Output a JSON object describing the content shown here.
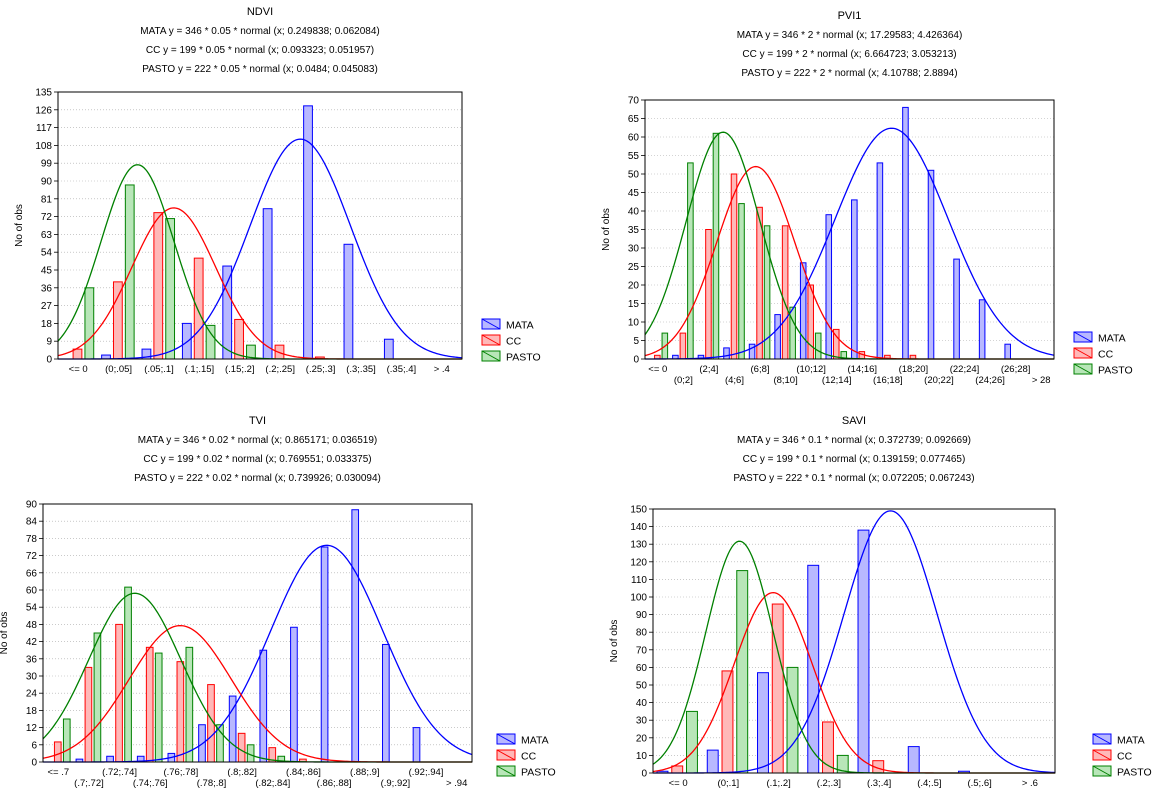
{
  "colors": {
    "MATA": "#0000ff",
    "CC": "#ff0000",
    "PASTO": "#008000"
  },
  "chart_data": [
    {
      "type": "bar",
      "title": "NDVI",
      "subtitle": [
        "MATA y = 346 * 0.05 * normal (x; 0.249838; 0.062084)",
        "CC y = 199 * 0.05 * normal (x; 0.093323; 0.051957)",
        "PASTO y = 222 * 0.05 * normal (x; 0.0484; 0.045083)"
      ],
      "ylabel": "No of obs",
      "ylim": [
        0,
        135
      ],
      "yticks": [
        0,
        9,
        18,
        27,
        36,
        45,
        54,
        63,
        72,
        81,
        90,
        99,
        108,
        117,
        126,
        135
      ],
      "categories": [
        "<= 0",
        "(0;.05]",
        "(.05;.1]",
        "(.1;.15]",
        "(.15;.2]",
        "(.2;.25]",
        "(.25;.3]",
        "(.3;.35]",
        "(.35;.4]",
        "> .4"
      ],
      "label_rows": 1,
      "legend_position": "right",
      "grid": true,
      "series": [
        {
          "name": "MATA",
          "values": [
            0,
            2,
            5,
            18,
            47,
            76,
            128,
            58,
            10,
            0
          ],
          "fit": {
            "n": 346,
            "w": 0.05,
            "mean": 0.249838,
            "sd": 0.062084
          }
        },
        {
          "name": "CC",
          "values": [
            5,
            39,
            74,
            51,
            20,
            7,
            1,
            0,
            0,
            0
          ],
          "fit": {
            "n": 199,
            "w": 0.05,
            "mean": 0.093323,
            "sd": 0.051957
          }
        },
        {
          "name": "PASTO",
          "values": [
            36,
            88,
            71,
            17,
            7,
            0,
            0,
            0,
            0,
            0
          ],
          "fit": {
            "n": 222,
            "w": 0.05,
            "mean": 0.0484,
            "sd": 0.045083
          }
        }
      ],
      "bins": {
        "first_lower": 0,
        "width": 0.05
      }
    },
    {
      "type": "bar",
      "title": "PVI1",
      "subtitle": [
        "MATA y = 346 * 2 * normal (x; 17.29583; 4.426364)",
        "CC y = 199 * 2 * normal (x; 6.664723; 3.053213)",
        "PASTO y = 222 * 2 * normal (x; 4.10788; 2.8894)"
      ],
      "ylabel": "No of obs",
      "ylim": [
        0,
        70
      ],
      "yticks": [
        0,
        5,
        10,
        15,
        20,
        25,
        30,
        35,
        40,
        45,
        50,
        55,
        60,
        65,
        70
      ],
      "categories": [
        "<= 0",
        "(0;2]",
        "(2;4]",
        "(4;6]",
        "(6;8]",
        "(8;10]",
        "(10;12]",
        "(12;14]",
        "(14;16]",
        "(16;18]",
        "(18;20]",
        "(20;22]",
        "(22;24]",
        "(24;26]",
        "(26;28]",
        "> 28"
      ],
      "label_rows": 2,
      "legend_position": "right",
      "grid": true,
      "series": [
        {
          "name": "MATA",
          "values": [
            0,
            1,
            1,
            3,
            4,
            12,
            26,
            39,
            43,
            53,
            68,
            51,
            27,
            16,
            4,
            0
          ],
          "fit": {
            "n": 346,
            "w": 2,
            "mean": 17.29583,
            "sd": 4.426364
          }
        },
        {
          "name": "CC",
          "values": [
            1,
            7,
            35,
            50,
            41,
            36,
            20,
            8,
            2,
            1,
            1,
            0,
            0,
            0,
            0,
            0
          ],
          "fit": {
            "n": 199,
            "w": 2,
            "mean": 6.664723,
            "sd": 3.053213
          }
        },
        {
          "name": "PASTO",
          "values": [
            7,
            53,
            61,
            42,
            36,
            14,
            7,
            2,
            0,
            0,
            0,
            0,
            0,
            0,
            0,
            0
          ],
          "fit": {
            "n": 222,
            "w": 2,
            "mean": 4.10788,
            "sd": 2.8894
          }
        }
      ],
      "bins": {
        "first_lower": 0,
        "width": 2
      }
    },
    {
      "type": "bar",
      "title": "TVI",
      "subtitle": [
        "MATA y = 346 * 0.02 * normal (x; 0.865171; 0.036519)",
        "CC y = 199 * 0.02 * normal (x; 0.769551; 0.033375)",
        "PASTO y = 222 * 0.02 * normal (x; 0.739926; 0.030094)"
      ],
      "ylabel": "No of obs",
      "ylim": [
        0,
        90
      ],
      "yticks": [
        0,
        6,
        12,
        18,
        24,
        30,
        36,
        42,
        48,
        54,
        60,
        66,
        72,
        78,
        84,
        90
      ],
      "categories": [
        "<= .7",
        "(.7;.72]",
        "(.72;.74]",
        "(.74;.76]",
        "(.76;.78]",
        "(.78;.8]",
        "(.8;.82]",
        "(.82;.84]",
        "(.84;.86]",
        "(.86;.88]",
        "(.88;.9]",
        "(.9;.92]",
        "(.92;.94]",
        "> .94"
      ],
      "label_rows": 2,
      "legend_position": "right",
      "grid": true,
      "series": [
        {
          "name": "MATA",
          "values": [
            0,
            1,
            2,
            2,
            3,
            13,
            23,
            39,
            47,
            75,
            88,
            41,
            12,
            0
          ],
          "fit": {
            "n": 346,
            "w": 0.02,
            "mean": 0.865171,
            "sd": 0.036519
          }
        },
        {
          "name": "CC",
          "values": [
            7,
            33,
            48,
            40,
            35,
            27,
            10,
            5,
            1,
            0,
            0,
            0,
            0,
            0
          ],
          "fit": {
            "n": 199,
            "w": 0.02,
            "mean": 0.769551,
            "sd": 0.033375
          }
        },
        {
          "name": "PASTO",
          "values": [
            15,
            45,
            61,
            38,
            40,
            13,
            6,
            2,
            0,
            0,
            0,
            0,
            0,
            0
          ],
          "fit": {
            "n": 222,
            "w": 0.02,
            "mean": 0.739926,
            "sd": 0.030094
          }
        }
      ],
      "bins": {
        "first_lower": 0.7,
        "width": 0.02
      }
    },
    {
      "type": "bar",
      "title": "SAVI",
      "subtitle": [
        "MATA y = 346 * 0.1 * normal (x; 0.372739; 0.092669)",
        "CC y = 199 * 0.1 * normal (x; 0.139159; 0.077465)",
        "PASTO y = 222 * 0.1 * normal (x; 0.072205; 0.067243)"
      ],
      "ylabel": "No of obs",
      "ylim": [
        0,
        150
      ],
      "yticks": [
        0,
        10,
        20,
        30,
        40,
        50,
        60,
        70,
        80,
        90,
        100,
        110,
        120,
        130,
        140,
        150
      ],
      "categories": [
        "<= 0",
        "(0;.1]",
        "(.1;.2]",
        "(.2;.3]",
        "(.3;.4]",
        "(.4;.5]",
        "(.5;.6]",
        "> .6"
      ],
      "label_rows": 1,
      "legend_position": "right",
      "grid": true,
      "series": [
        {
          "name": "MATA",
          "values": [
            1,
            13,
            57,
            118,
            138,
            15,
            1,
            0
          ],
          "fit": {
            "n": 346,
            "w": 0.1,
            "mean": 0.372739,
            "sd": 0.092669
          }
        },
        {
          "name": "CC",
          "values": [
            4,
            58,
            96,
            29,
            7,
            0,
            0,
            0
          ],
          "fit": {
            "n": 199,
            "w": 0.1,
            "mean": 0.139159,
            "sd": 0.077465
          }
        },
        {
          "name": "PASTO",
          "values": [
            35,
            115,
            60,
            10,
            0,
            0,
            0,
            0
          ],
          "fit": {
            "n": 222,
            "w": 0.1,
            "mean": 0.072205,
            "sd": 0.067243
          }
        }
      ],
      "bins": {
        "first_lower": 0,
        "width": 0.1
      }
    }
  ]
}
